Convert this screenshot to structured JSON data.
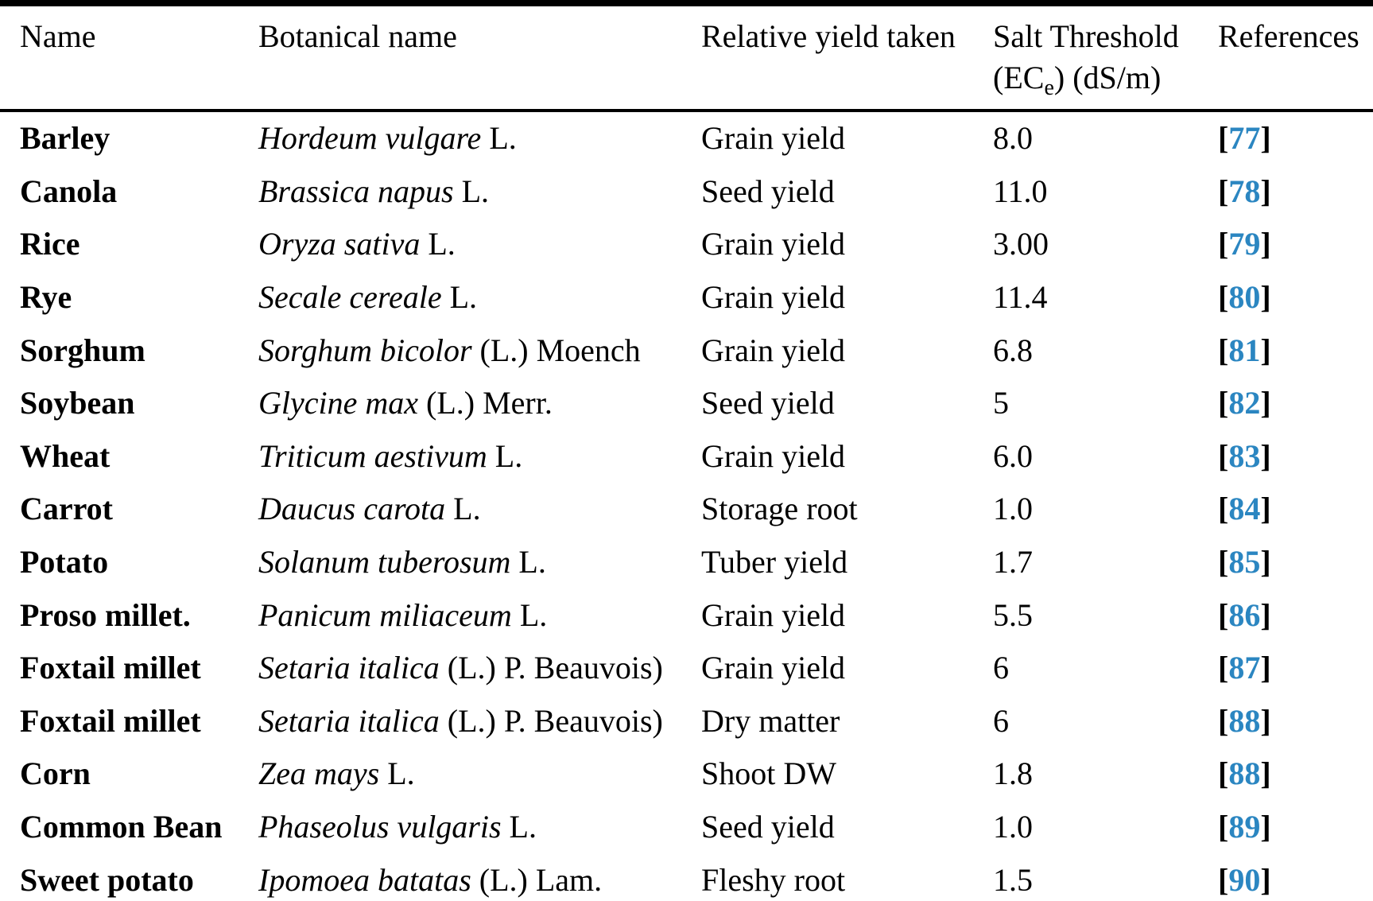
{
  "table": {
    "header": {
      "name": "Name",
      "botanical": "Botanical name",
      "yield": "Relative yield taken",
      "threshold_line1": "Salt Threshold",
      "threshold_line2_pre": "(EC",
      "threshold_line2_sub": "e",
      "threshold_line2_post": ") (dS/m)",
      "references": "References"
    },
    "rows": [
      {
        "name": "Barley",
        "botanical_italic": "Hordeum vulgare",
        "botanical_rest": " L.",
        "yield": "Grain yield",
        "threshold": "8.0",
        "ref": "77"
      },
      {
        "name": "Canola",
        "botanical_italic": "Brassica napus",
        "botanical_rest": " L.",
        "yield": "Seed yield",
        "threshold": "11.0",
        "ref": "78"
      },
      {
        "name": "Rice",
        "botanical_italic": "Oryza sativa",
        "botanical_rest": " L.",
        "yield": "Grain yield",
        "threshold": "3.00",
        "ref": "79"
      },
      {
        "name": "Rye",
        "botanical_italic": "Secale cereale",
        "botanical_rest": " L.",
        "yield": "Grain yield",
        "threshold": "11.4",
        "ref": "80"
      },
      {
        "name": "Sorghum",
        "botanical_italic": "Sorghum bicolor",
        "botanical_rest": " (L.) Moench",
        "yield": "Grain yield",
        "threshold": "6.8",
        "ref": "81"
      },
      {
        "name": "Soybean",
        "botanical_italic": "Glycine max",
        "botanical_rest": " (L.) Merr.",
        "yield": "Seed yield",
        "threshold": "5",
        "ref": "82"
      },
      {
        "name": "Wheat",
        "botanical_italic": "Triticum aestivum",
        "botanical_rest": " L.",
        "yield": "Grain yield",
        "threshold": "6.0",
        "ref": "83"
      },
      {
        "name": "Carrot",
        "botanical_italic": "Daucus carota",
        "botanical_rest": " L.",
        "yield": "Storage root",
        "threshold": "1.0",
        "ref": "84"
      },
      {
        "name": "Potato",
        "botanical_italic": "Solanum tuberosum",
        "botanical_rest": " L.",
        "yield": "Tuber yield",
        "threshold": "1.7",
        "ref": "85"
      },
      {
        "name": "Proso millet.",
        "botanical_italic": "Panicum miliaceum",
        "botanical_rest": " L.",
        "yield": "Grain yield",
        "threshold": "5.5",
        "ref": "86"
      },
      {
        "name": "Foxtail millet",
        "botanical_italic": "Setaria italica",
        "botanical_rest": " (L.) P. Beauvois)",
        "yield": "Grain yield",
        "threshold": "6",
        "ref": "87"
      },
      {
        "name": "Foxtail millet",
        "botanical_italic": "Setaria italica",
        "botanical_rest": " (L.) P. Beauvois)",
        "yield": "Dry matter",
        "threshold": "6",
        "ref": "88"
      },
      {
        "name": "Corn",
        "botanical_italic": "Zea mays",
        "botanical_rest": " L.",
        "yield": "Shoot DW",
        "threshold": "1.8",
        "ref": "88"
      },
      {
        "name": "Common Bean",
        "botanical_italic": "Phaseolus vulgaris",
        "botanical_rest": " L.",
        "yield": "Seed yield",
        "threshold": "1.0",
        "ref": "89"
      },
      {
        "name": "Sweet potato",
        "botanical_italic": "Ipomoea batatas",
        "botanical_rest": " (L.) Lam.",
        "yield": "Fleshy root",
        "threshold": "1.5",
        "ref": "90"
      }
    ],
    "reference_bracket_open": "[",
    "reference_bracket_close": "]",
    "colors": {
      "text": "#000000",
      "reference_blue": "#2b86c1"
    }
  }
}
